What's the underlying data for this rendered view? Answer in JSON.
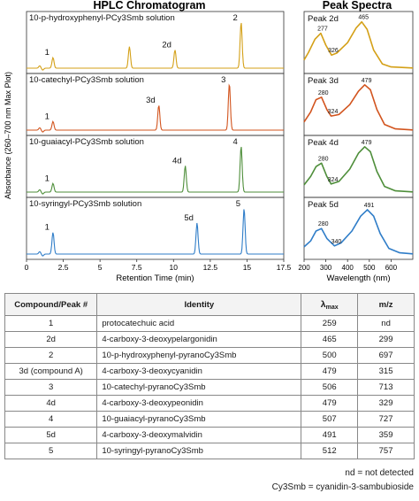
{
  "chart_data": [
    {
      "type": "line",
      "title": "HPLC Chromatogram",
      "xlabel": "Retention Time (min)",
      "ylabel": "Absorbance (260–700 nm Max Plot)",
      "xlim": [
        0,
        17.5
      ],
      "xticks": [
        "0",
        "2.5",
        "5",
        "7.5",
        "10",
        "12.5",
        "15",
        "17.5"
      ],
      "grid": false,
      "panels": [
        {
          "name": "10-p-hydroxyphenyl-PCy3Smb solution",
          "color": "#D4A017",
          "peaks": [
            {
              "label": "1",
              "x": 1.8,
              "h": 0.22
            },
            {
              "label": "",
              "x": 7.0,
              "h": 0.45
            },
            {
              "label": "2d",
              "x": 10.1,
              "h": 0.38
            },
            {
              "label": "2",
              "x": 14.6,
              "h": 0.96
            }
          ]
        },
        {
          "name": "10-catechyl-PCy3Smb solution",
          "color": "#D2541E",
          "peaks": [
            {
              "label": "1",
              "x": 1.8,
              "h": 0.18
            },
            {
              "label": "3d",
              "x": 9.0,
              "h": 0.52
            },
            {
              "label": "3",
              "x": 13.8,
              "h": 0.97
            }
          ]
        },
        {
          "name": "10-guaiacyl-PCy3Smb solution",
          "color": "#4E8E3A",
          "peaks": [
            {
              "label": "1",
              "x": 1.8,
              "h": 0.18
            },
            {
              "label": "4d",
              "x": 10.8,
              "h": 0.55
            },
            {
              "label": "4",
              "x": 14.6,
              "h": 0.96
            }
          ]
        },
        {
          "name": "10-syringyl-PCy3Smb solution",
          "color": "#2F7DC8",
          "peaks": [
            {
              "label": "1",
              "x": 1.8,
              "h": 0.45
            },
            {
              "label": "5d",
              "x": 11.6,
              "h": 0.65
            },
            {
              "label": "5",
              "x": 14.8,
              "h": 0.95
            }
          ]
        }
      ]
    },
    {
      "type": "line",
      "title": "Peak Spectra",
      "xlabel": "Wavelength (nm)",
      "xlim": [
        200,
        700
      ],
      "xticks": [
        "200",
        "300",
        "400",
        "500",
        "600"
      ],
      "grid": false,
      "panels": [
        {
          "name": "Peak 2d",
          "color": "#D4A017",
          "points": [
            [
              200,
              0.2
            ],
            [
              220,
              0.35
            ],
            [
              250,
              0.62
            ],
            [
              277,
              0.74
            ],
            [
              300,
              0.5
            ],
            [
              326,
              0.3
            ],
            [
              350,
              0.34
            ],
            [
              400,
              0.55
            ],
            [
              440,
              0.85
            ],
            [
              465,
              0.97
            ],
            [
              490,
              0.82
            ],
            [
              520,
              0.4
            ],
            [
              560,
              0.12
            ],
            [
              600,
              0.06
            ],
            [
              650,
              0.05
            ],
            [
              700,
              0.04
            ]
          ],
          "labels": [
            {
              "text": "277",
              "x": 277,
              "y": 0.74
            },
            {
              "text": "326",
              "x": 326,
              "y": 0.3
            },
            {
              "text": "465",
              "x": 465,
              "y": 0.97
            }
          ]
        },
        {
          "name": "Peak 3d",
          "color": "#D2541E",
          "points": [
            [
              200,
              0.2
            ],
            [
              230,
              0.4
            ],
            [
              255,
              0.65
            ],
            [
              280,
              0.7
            ],
            [
              305,
              0.45
            ],
            [
              324,
              0.32
            ],
            [
              360,
              0.35
            ],
            [
              410,
              0.55
            ],
            [
              450,
              0.82
            ],
            [
              479,
              0.95
            ],
            [
              505,
              0.85
            ],
            [
              535,
              0.45
            ],
            [
              570,
              0.15
            ],
            [
              620,
              0.06
            ],
            [
              700,
              0.04
            ]
          ],
          "labels": [
            {
              "text": "280",
              "x": 280,
              "y": 0.7
            },
            {
              "text": "324",
              "x": 324,
              "y": 0.32
            },
            {
              "text": "479",
              "x": 479,
              "y": 0.95
            }
          ]
        },
        {
          "name": "Peak 4d",
          "color": "#4E8E3A",
          "points": [
            [
              200,
              0.18
            ],
            [
              230,
              0.35
            ],
            [
              255,
              0.55
            ],
            [
              280,
              0.62
            ],
            [
              305,
              0.35
            ],
            [
              324,
              0.2
            ],
            [
              360,
              0.25
            ],
            [
              410,
              0.5
            ],
            [
              450,
              0.82
            ],
            [
              479,
              0.95
            ],
            [
              505,
              0.85
            ],
            [
              535,
              0.45
            ],
            [
              570,
              0.15
            ],
            [
              620,
              0.06
            ],
            [
              700,
              0.04
            ]
          ],
          "labels": [
            {
              "text": "280",
              "x": 280,
              "y": 0.62
            },
            {
              "text": "324",
              "x": 324,
              "y": 0.2
            },
            {
              "text": "479",
              "x": 479,
              "y": 0.95
            }
          ]
        },
        {
          "name": "Peak 5d",
          "color": "#2F7DC8",
          "points": [
            [
              200,
              0.18
            ],
            [
              230,
              0.3
            ],
            [
              255,
              0.5
            ],
            [
              280,
              0.55
            ],
            [
              305,
              0.35
            ],
            [
              340,
              0.2
            ],
            [
              370,
              0.26
            ],
            [
              420,
              0.5
            ],
            [
              460,
              0.8
            ],
            [
              491,
              0.93
            ],
            [
              520,
              0.8
            ],
            [
              550,
              0.45
            ],
            [
              590,
              0.15
            ],
            [
              640,
              0.06
            ],
            [
              700,
              0.04
            ]
          ],
          "labels": [
            {
              "text": "280",
              "x": 280,
              "y": 0.55
            },
            {
              "text": "340",
              "x": 340,
              "y": 0.2
            },
            {
              "text": "491",
              "x": 491,
              "y": 0.93
            }
          ]
        }
      ]
    }
  ],
  "table": {
    "headers": {
      "compound": "Compound/Peak #",
      "identity": "Identity",
      "lambda": "λ",
      "lambda_sub": "max",
      "mz": "m/z"
    },
    "rows": [
      {
        "compound": "1",
        "identity": "protocatechuic acid",
        "lambda": "259",
        "mz": "nd"
      },
      {
        "compound": "2d",
        "identity": "4-carboxy-3-deoxypelargonidin",
        "lambda": "465",
        "mz": "299"
      },
      {
        "compound": "2",
        "identity": "10-p-hydroxyphenyl-pyranoCy3Smb",
        "lambda": "500",
        "mz": "697"
      },
      {
        "compound": "3d (compound A)",
        "identity": "4-carboxy-3-deoxycyanidin",
        "lambda": "479",
        "mz": "315"
      },
      {
        "compound": "3",
        "identity": "10-catechyl-pyranoCy3Smb",
        "lambda": "506",
        "mz": "713"
      },
      {
        "compound": "4d",
        "identity": "4-carboxy-3-deoxypeonidin",
        "lambda": "479",
        "mz": "329"
      },
      {
        "compound": "4",
        "identity": "10-guaiacyl-pyranoCy3Smb",
        "lambda": "507",
        "mz": "727"
      },
      {
        "compound": "5d",
        "identity": "4-carboxy-3-deoxymalvidin",
        "lambda": "491",
        "mz": "359"
      },
      {
        "compound": "5",
        "identity": "10-syringyl-pyranoCy3Smb",
        "lambda": "512",
        "mz": "757"
      }
    ]
  },
  "footnotes": [
    "nd = not detected",
    "Cy3Smb = cyanidin-3-sambubioside"
  ]
}
